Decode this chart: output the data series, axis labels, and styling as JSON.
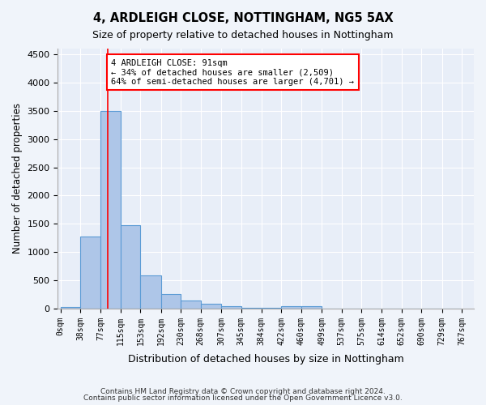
{
  "title1": "4, ARDLEIGH CLOSE, NOTTINGHAM, NG5 5AX",
  "title2": "Size of property relative to detached houses in Nottingham",
  "xlabel": "Distribution of detached houses by size in Nottingham",
  "ylabel": "Number of detached properties",
  "bar_labels": [
    "0sqm",
    "38sqm",
    "77sqm",
    "115sqm",
    "153sqm",
    "192sqm",
    "230sqm",
    "268sqm",
    "307sqm",
    "345sqm",
    "384sqm",
    "422sqm",
    "460sqm",
    "499sqm",
    "537sqm",
    "575sqm",
    "614sqm",
    "652sqm",
    "690sqm",
    "729sqm",
    "767sqm"
  ],
  "bar_heights": [
    30,
    1270,
    3500,
    1480,
    580,
    250,
    140,
    90,
    35,
    18,
    8,
    40,
    45,
    0,
    0,
    0,
    0,
    0,
    0,
    0
  ],
  "bar_color": "#aec6e8",
  "bar_edge_color": "#5b9bd5",
  "red_line_x": 91,
  "ylim": [
    0,
    4600
  ],
  "yticks": [
    0,
    500,
    1000,
    1500,
    2000,
    2500,
    3000,
    3500,
    4000,
    4500
  ],
  "bin_edges": [
    0,
    38,
    77,
    115,
    153,
    192,
    230,
    268,
    307,
    345,
    384,
    422,
    460,
    499,
    537,
    575,
    614,
    652,
    690,
    729,
    767
  ],
  "annotation_text": "4 ARDLEIGH CLOSE: 91sqm\n← 34% of detached houses are smaller (2,509)\n64% of semi-detached houses are larger (4,701) →",
  "footer1": "Contains HM Land Registry data © Crown copyright and database right 2024.",
  "footer2": "Contains public sector information licensed under the Open Government Licence v3.0.",
  "bg_color": "#f0f4fa",
  "plot_bg_color": "#e8eef8"
}
